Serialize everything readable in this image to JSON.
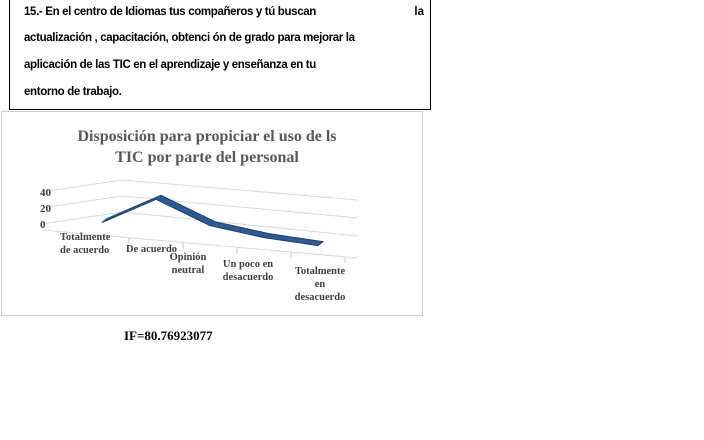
{
  "question": {
    "line1": "15.-  En el centro de Idiomas tus compañeros y tú buscan",
    "line1_right": "la",
    "line2": "actualización  , capacitación, obtenci  ón de grado para mejorar la",
    "line3": "aplicación de las TIC en el aprendizaje y enseñanza en tu",
    "line4": "entorno de trabajo."
  },
  "chart_data": {
    "type": "line",
    "title_line1": "Disposición para propiciar el uso de ls",
    "title_line2": "TIC por parte del personal",
    "categories": [
      [
        "Totalmente",
        "de acuerdo"
      ],
      [
        "De acuerdo"
      ],
      [
        "Opinión",
        "neutral"
      ],
      [
        "Un poco en",
        "desacuerdo"
      ],
      [
        "Totalmente",
        "en",
        "desacuerdo"
      ]
    ],
    "values": [
      1,
      36,
      9,
      0,
      -4
    ],
    "y_ticks": [
      "40",
      "20",
      "0"
    ],
    "ylim": [
      0,
      40
    ],
    "series_color": "#2e5a94",
    "grid": true,
    "style": "3d"
  },
  "footer": {
    "if_text": "IF=80.76923077"
  }
}
